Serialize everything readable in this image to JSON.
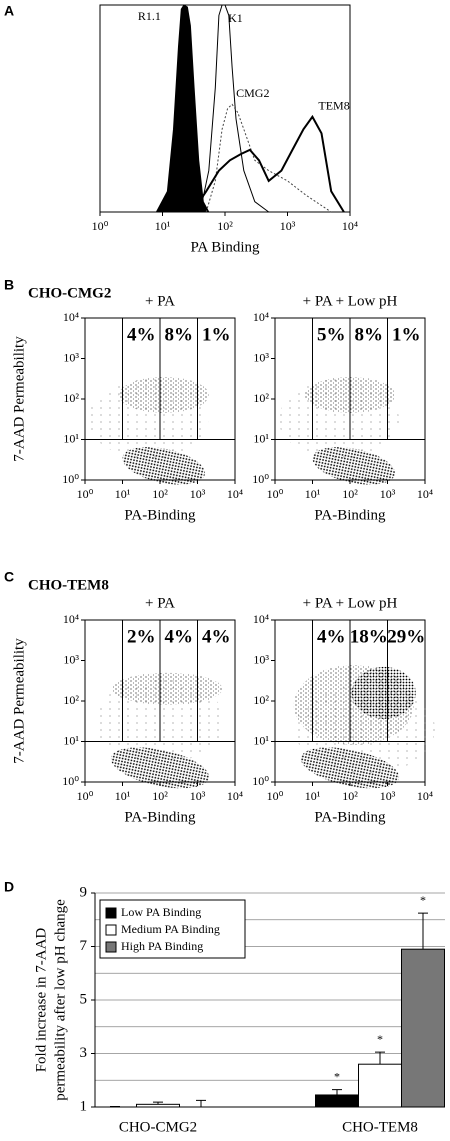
{
  "chart_data": [
    {
      "type": "line",
      "panel": "A",
      "xlabel": "PA Binding",
      "log_x": true,
      "xlim": [
        1,
        10000
      ],
      "xticks": [
        {
          "value": 1,
          "label": "10⁰"
        },
        {
          "value": 10,
          "label": "10¹"
        },
        {
          "value": 100,
          "label": "10²"
        },
        {
          "value": 1000,
          "label": "10³"
        },
        {
          "value": 10000,
          "label": "10⁴"
        }
      ],
      "ylim": [
        0,
        100
      ],
      "series": [
        {
          "name": "R1.1",
          "color": "#000000",
          "style": "filled",
          "x": [
            8,
            12,
            15,
            18,
            20,
            22,
            25,
            28,
            32,
            38,
            45,
            55
          ],
          "values": [
            0,
            10,
            40,
            80,
            98,
            100,
            99,
            90,
            60,
            25,
            5,
            0
          ]
        },
        {
          "name": "K1",
          "color": "#000000",
          "style": "solid",
          "x": [
            40,
            55,
            70,
            80,
            90,
            100,
            115,
            130,
            150,
            200,
            300,
            500
          ],
          "values": [
            0,
            20,
            60,
            95,
            100,
            100,
            95,
            70,
            45,
            20,
            5,
            0
          ]
        },
        {
          "name": "CMG2",
          "color": "#444444",
          "style": "dotted",
          "x": [
            50,
            70,
            90,
            110,
            130,
            160,
            200,
            300,
            500,
            1000,
            2000,
            5000
          ],
          "values": [
            0,
            15,
            40,
            50,
            52,
            48,
            40,
            25,
            20,
            15,
            8,
            0
          ]
        },
        {
          "name": "TEM8",
          "color": "#000000",
          "style": "thick",
          "x": [
            30,
            50,
            80,
            120,
            180,
            250,
            350,
            500,
            800,
            1200,
            1800,
            2500,
            3500,
            5000,
            8000
          ],
          "values": [
            0,
            10,
            20,
            25,
            28,
            30,
            25,
            15,
            20,
            30,
            40,
            46,
            38,
            10,
            0
          ]
        }
      ]
    },
    {
      "type": "dotplot",
      "panel": "B",
      "group_title": "CHO-CMG2",
      "title": "+ PA",
      "ylabel": "7-AAD Permeability",
      "xlabel": "PA-Binding",
      "log_x": true,
      "log_y": true,
      "xlim": [
        1,
        10000
      ],
      "ylim": [
        1,
        10000
      ],
      "xticks": [
        {
          "value": 1,
          "label": "10⁰"
        },
        {
          "value": 10,
          "label": "10¹"
        },
        {
          "value": 100,
          "label": "10²"
        },
        {
          "value": 1000,
          "label": "10³"
        },
        {
          "value": 10000,
          "label": "10⁴"
        }
      ],
      "yticks": [
        {
          "value": 1,
          "label": "10⁰"
        },
        {
          "value": 10,
          "label": "10¹"
        },
        {
          "value": 100,
          "label": "10²"
        },
        {
          "value": 1000,
          "label": "10³"
        },
        {
          "value": 10000,
          "label": "10⁴"
        }
      ],
      "gates_x": [
        10,
        100,
        1000
      ],
      "gate_y": 10,
      "values": [
        4,
        8,
        1
      ],
      "value_labels": [
        "4%",
        "8%",
        "1%"
      ]
    },
    {
      "type": "dotplot",
      "title": "+ PA + Low pH",
      "xlabel": "PA-Binding",
      "log_x": true,
      "log_y": true,
      "xlim": [
        1,
        10000
      ],
      "ylim": [
        1,
        10000
      ],
      "xticks": [
        {
          "value": 1,
          "label": "10⁰"
        },
        {
          "value": 10,
          "label": "10¹"
        },
        {
          "value": 100,
          "label": "10²"
        },
        {
          "value": 1000,
          "label": "10³"
        },
        {
          "value": 10000,
          "label": "10⁴"
        }
      ],
      "yticks": [
        {
          "value": 1,
          "label": "10⁰"
        },
        {
          "value": 10,
          "label": "10¹"
        },
        {
          "value": 100,
          "label": "10²"
        },
        {
          "value": 1000,
          "label": "10³"
        },
        {
          "value": 10000,
          "label": "10⁴"
        }
      ],
      "gates_x": [
        10,
        100,
        1000
      ],
      "gate_y": 10,
      "values": [
        5,
        8,
        1
      ],
      "value_labels": [
        "5%",
        "8%",
        "1%"
      ]
    },
    {
      "type": "dotplot",
      "panel": "C",
      "group_title": "CHO-TEM8",
      "title": "+ PA",
      "ylabel": "7-AAD Permeability",
      "xlabel": "PA-Binding",
      "log_x": true,
      "log_y": true,
      "xlim": [
        1,
        10000
      ],
      "ylim": [
        1,
        10000
      ],
      "xticks": [
        {
          "value": 1,
          "label": "10⁰"
        },
        {
          "value": 10,
          "label": "10¹"
        },
        {
          "value": 100,
          "label": "10²"
        },
        {
          "value": 1000,
          "label": "10³"
        },
        {
          "value": 10000,
          "label": "10⁴"
        }
      ],
      "yticks": [
        {
          "value": 1,
          "label": "10⁰"
        },
        {
          "value": 10,
          "label": "10¹"
        },
        {
          "value": 100,
          "label": "10²"
        },
        {
          "value": 1000,
          "label": "10³"
        },
        {
          "value": 10000,
          "label": "10⁴"
        }
      ],
      "gates_x": [
        10,
        100,
        1000
      ],
      "gate_y": 10,
      "values": [
        2,
        4,
        4
      ],
      "value_labels": [
        "2%",
        "4%",
        "4%"
      ]
    },
    {
      "type": "dotplot",
      "title": "+ PA + Low pH",
      "xlabel": "PA-Binding",
      "log_x": true,
      "log_y": true,
      "xlim": [
        1,
        10000
      ],
      "ylim": [
        1,
        10000
      ],
      "xticks": [
        {
          "value": 1,
          "label": "10⁰"
        },
        {
          "value": 10,
          "label": "10¹"
        },
        {
          "value": 100,
          "label": "10²"
        },
        {
          "value": 1000,
          "label": "10³"
        },
        {
          "value": 10000,
          "label": "10⁴"
        }
      ],
      "yticks": [
        {
          "value": 1,
          "label": "10⁰"
        },
        {
          "value": 10,
          "label": "10¹"
        },
        {
          "value": 100,
          "label": "10²"
        },
        {
          "value": 1000,
          "label": "10³"
        },
        {
          "value": 10000,
          "label": "10⁴"
        }
      ],
      "gates_x": [
        10,
        100,
        1000
      ],
      "gate_y": 10,
      "values": [
        4,
        18,
        29
      ],
      "value_labels": [
        "4%",
        "18%",
        "29%"
      ]
    },
    {
      "type": "bar",
      "panel": "D",
      "ylabel": [
        "Fold increase in 7-AAD",
        "permeability after low pH change"
      ],
      "categories": [
        "CHO-CMG2",
        "CHO-TEM8"
      ],
      "series": [
        {
          "name": "Low PA Binding",
          "color": "#000000",
          "values": [
            1.0,
            1.45
          ],
          "errors": [
            0.02,
            0.2
          ]
        },
        {
          "name": "Medium PA Binding",
          "color": "#ffffff",
          "values": [
            1.1,
            2.6
          ],
          "errors": [
            0.08,
            0.45
          ]
        },
        {
          "name": "High PA Binding",
          "color": "#777777",
          "values": [
            1.0,
            6.9
          ],
          "errors": [
            0.25,
            1.35
          ]
        }
      ],
      "significance_marker": "*",
      "significant": [
        false,
        true
      ],
      "ylim": [
        1,
        9
      ],
      "yticks": [
        1,
        3,
        5,
        7,
        9
      ],
      "minor_grid": [
        2,
        4,
        6,
        8
      ],
      "grid": true,
      "legend": "top-left"
    }
  ]
}
